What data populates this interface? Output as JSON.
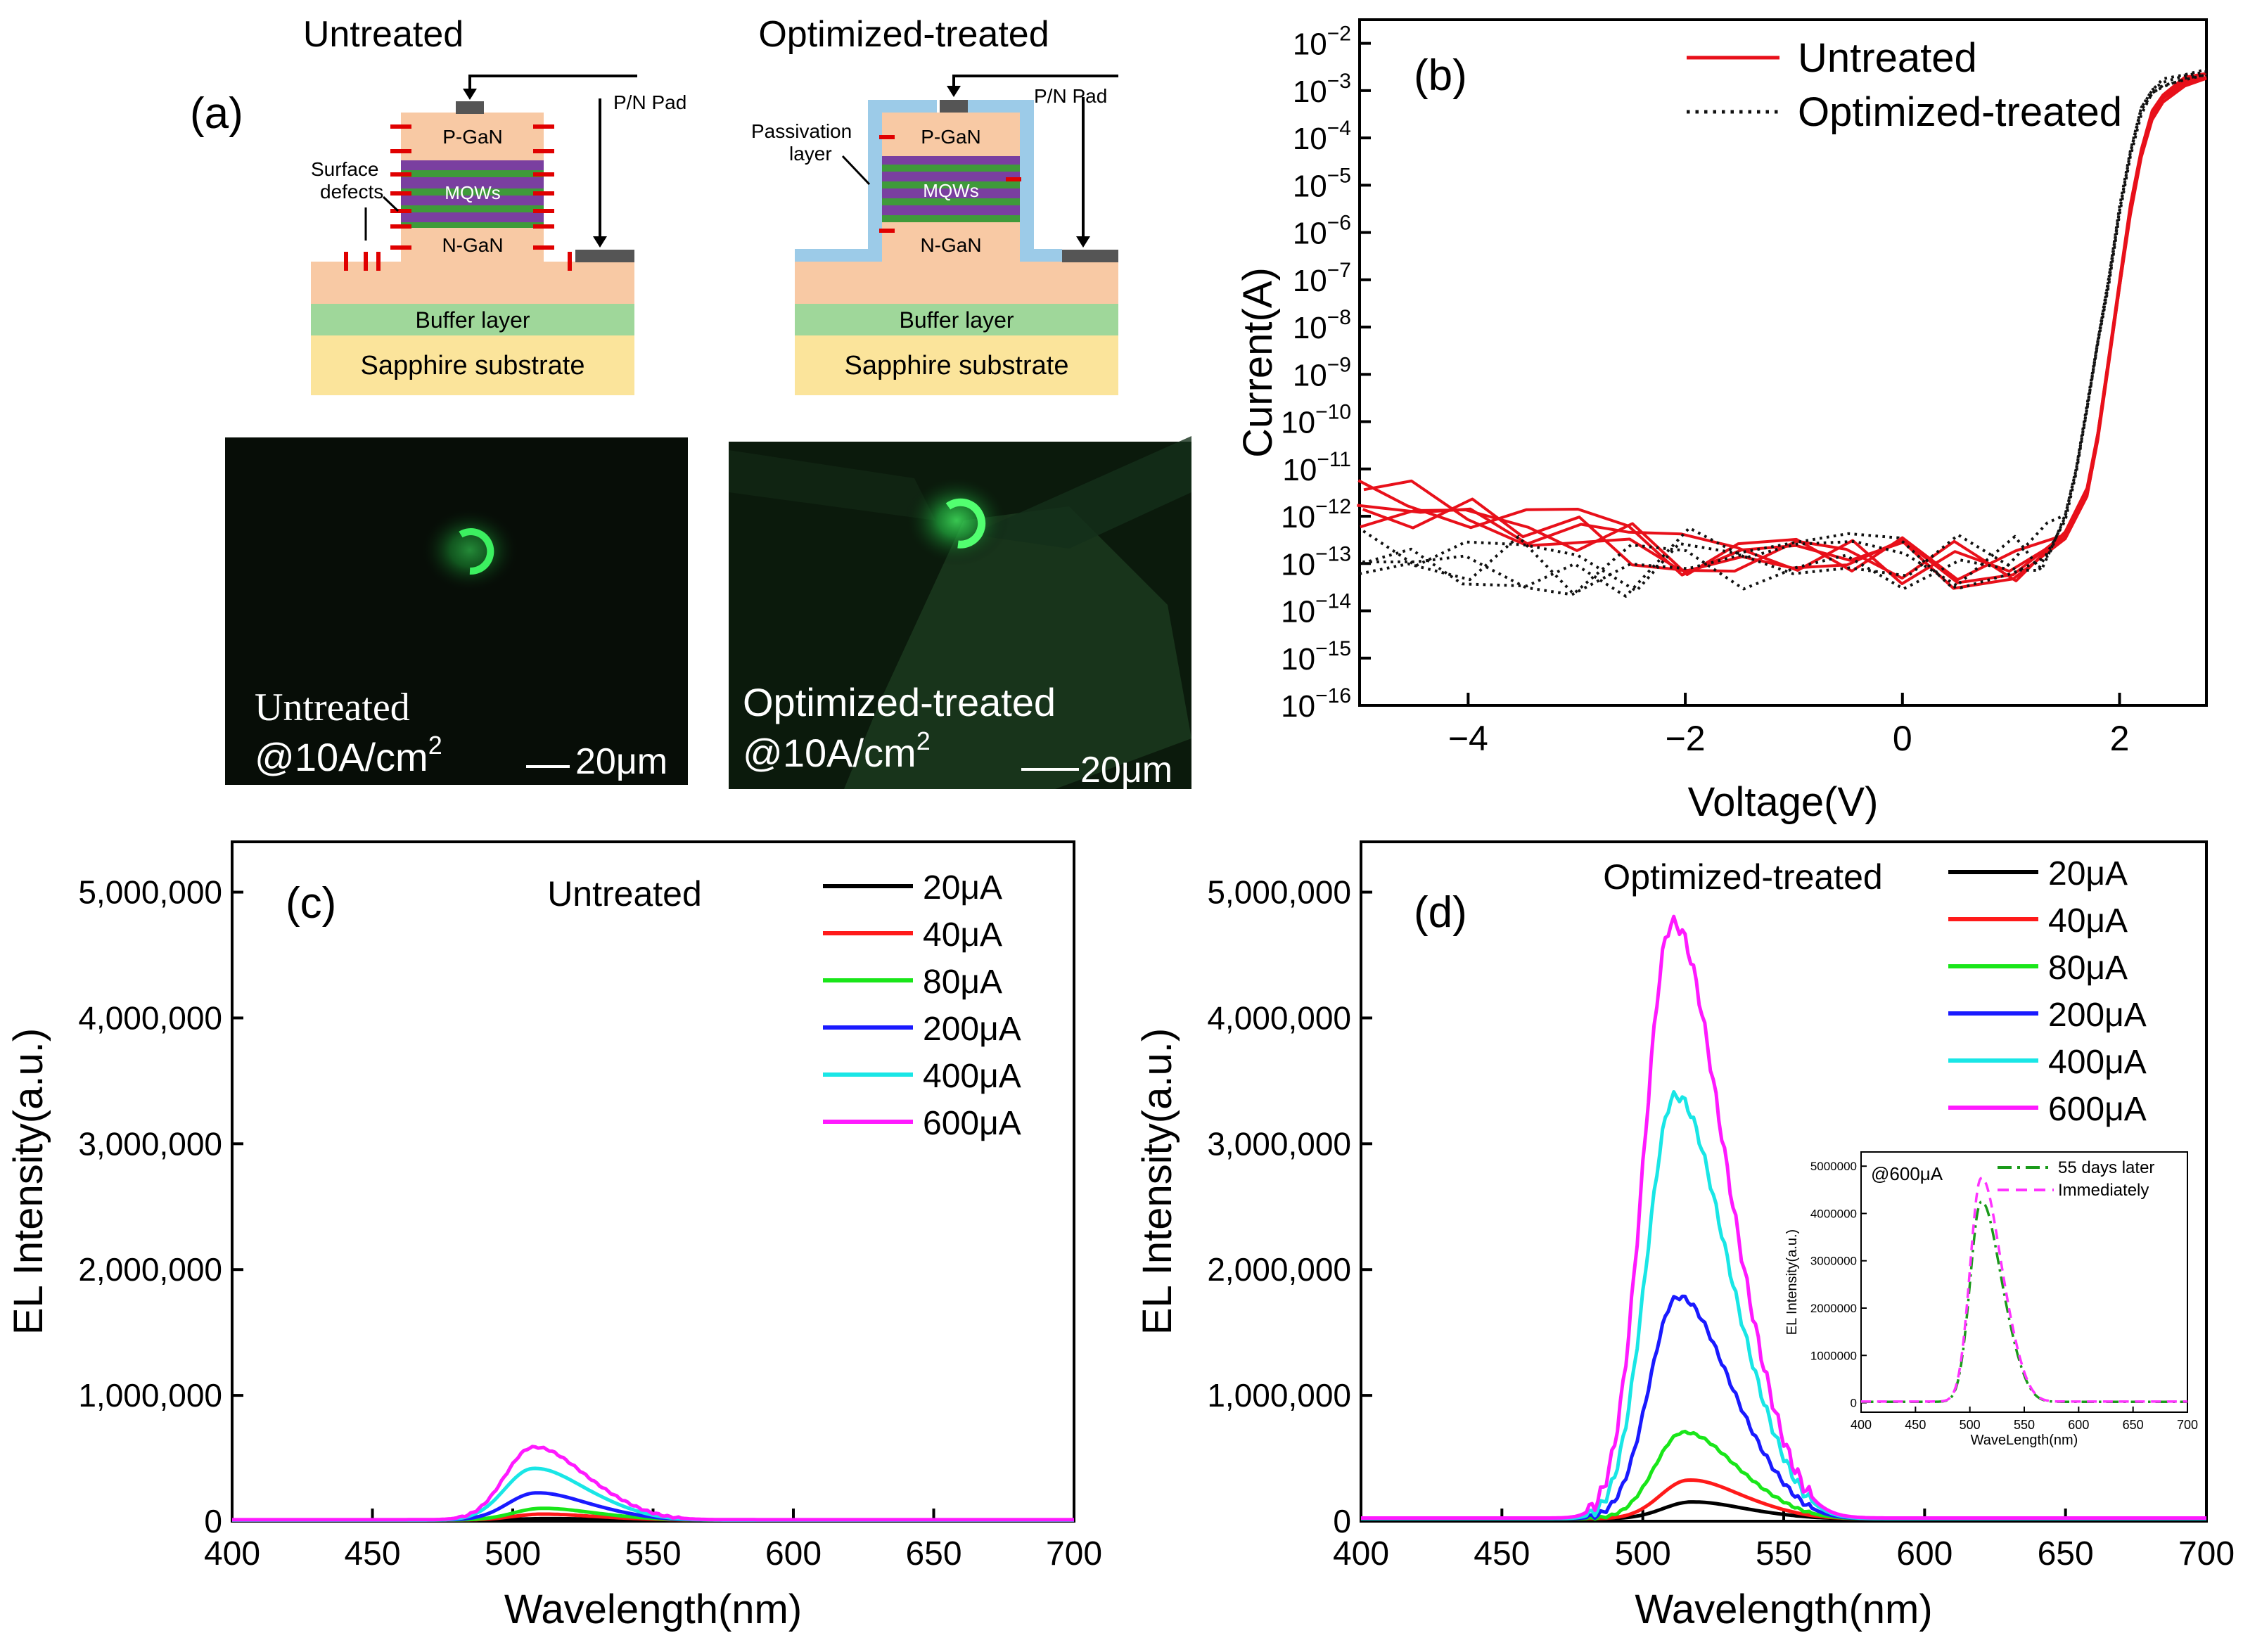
{
  "panel_a": {
    "label": "(a)",
    "untreated": {
      "title": "Untreated",
      "pn_pad": "P/N Pad",
      "surface_defects": "Surface\ndefects",
      "p_gan": "P-GaN",
      "mqws": "MQWs",
      "n_gan": "N-GaN",
      "buffer": "Buffer layer",
      "substrate": "Sapphire substrate",
      "photo_caption": "Untreated",
      "photo_cd": "@10A/cm",
      "photo_sup": "2",
      "scale": "20μm"
    },
    "treated": {
      "title": "Optimized-treated",
      "pn_pad": "P/N Pad",
      "passivation": "Passivation\nlayer",
      "p_gan": "P-GaN",
      "mqws": "MQWs",
      "n_gan": "N-GaN",
      "buffer": "Buffer layer",
      "substrate": "Sapphire substrate",
      "photo_caption": "Optimized-treated",
      "photo_cd": "@10A/cm",
      "photo_sup": "2",
      "scale": "20μm"
    },
    "colors": {
      "gan": "#f8c9a4",
      "buffer": "#9fd79a",
      "substrate": "#fbe49b",
      "mqw_purple": "#7a3fa0",
      "mqw_green": "#3f9a3a",
      "pad": "#555555",
      "passivation": "#9ccbe8",
      "defect": "#e00000",
      "glow": "#32e04a"
    }
  },
  "chart_data": [
    {
      "id": "b",
      "panel_label": "(b)",
      "type": "line",
      "xlabel": "Voltage(V)",
      "ylabel": "Current(A)",
      "xlim": [
        -5,
        2.8
      ],
      "ylim_log10": [
        -16,
        -1.5
      ],
      "yscale": "log",
      "xticks": [
        -4,
        -2,
        0,
        2
      ],
      "yticks_exp": [
        -16,
        -15,
        -14,
        -13,
        -12,
        -11,
        -10,
        -9,
        -8,
        -7,
        -6,
        -5,
        -4,
        -3,
        -2
      ],
      "ytick_base": "10",
      "legend_position": "top-right",
      "series": [
        {
          "name": "Untreated",
          "color": "#e8101a",
          "style": "solid",
          "x": [
            -5,
            -4.5,
            -4,
            -3.5,
            -3,
            -2.5,
            -2,
            -1.5,
            -1,
            -0.5,
            0,
            0.5,
            1,
            1.5,
            1.7,
            1.8,
            1.9,
            2.0,
            2.1,
            2.2,
            2.3,
            2.4,
            2.6,
            2.8
          ],
          "y": [
            2e-12,
            1.5e-12,
            9e-13,
            6e-13,
            4e-13,
            2.5e-13,
            2e-13,
            1.8e-13,
            1.5e-13,
            1.2e-13,
            1e-13,
            1e-13,
            1.2e-13,
            4e-13,
            3e-12,
            5e-11,
            2e-09,
            8e-08,
            3e-06,
            5e-05,
            0.0003,
            0.0007,
            0.0015,
            0.002
          ]
        },
        {
          "name": "Optimized-treated",
          "color": "#111111",
          "style": "dotted",
          "x": [
            -5,
            -4.5,
            -4,
            -3.5,
            -3,
            -2.5,
            -2,
            -1.5,
            -1,
            -0.5,
            0,
            0.5,
            1,
            1.3,
            1.5,
            1.6,
            1.7,
            1.8,
            1.9,
            2.0,
            2.1,
            2.2,
            2.3,
            2.4,
            2.6,
            2.8
          ],
          "y": [
            1e-13,
            1e-13,
            8e-14,
            1e-13,
            1e-13,
            1e-13,
            1.2e-13,
            1e-13,
            1e-13,
            1e-13,
            1e-13,
            1e-13,
            1e-13,
            1.5e-13,
            1e-12,
            1e-11,
            2e-10,
            5e-09,
            1e-07,
            3e-06,
            5e-05,
            0.0004,
            0.001,
            0.0015,
            0.002,
            0.0025
          ]
        }
      ]
    },
    {
      "id": "c",
      "panel_label": "(c)",
      "type": "line",
      "title": "Untreated",
      "xlabel": "Wavelength(nm)",
      "ylabel": "EL Intensity(a.u.)",
      "xlim": [
        400,
        700
      ],
      "ylim": [
        0,
        5400000
      ],
      "xticks": [
        400,
        450,
        500,
        550,
        600,
        650,
        700
      ],
      "yticks": [
        0,
        1000000,
        2000000,
        3000000,
        4000000,
        5000000
      ],
      "ytick_labels": [
        "0",
        "1,000,000",
        "2,000,000",
        "3,000,000",
        "4,000,000",
        "5,000,000"
      ],
      "legend_position": "top-right",
      "series": [
        {
          "name": "20μA",
          "color": "#000000",
          "peak_nm": 512,
          "peak": 20000,
          "baseline": 10000
        },
        {
          "name": "40μA",
          "color": "#ff1a1a",
          "peak_nm": 510,
          "peak": 55000,
          "baseline": 10000
        },
        {
          "name": "80μA",
          "color": "#19e619",
          "peak_nm": 510,
          "peak": 100000,
          "baseline": 10000
        },
        {
          "name": "200μA",
          "color": "#1a1aff",
          "peak_nm": 508,
          "peak": 220000,
          "baseline": 10000
        },
        {
          "name": "400μA",
          "color": "#19e6e6",
          "peak_nm": 507,
          "peak": 410000,
          "baseline": 10000
        },
        {
          "name": "600μA",
          "color": "#ff19ff",
          "peak_nm": 507,
          "peak": 575000,
          "baseline": 12000
        }
      ]
    },
    {
      "id": "d",
      "panel_label": "(d)",
      "type": "line",
      "title": "Optimized-treated",
      "xlabel": "Wavelength(nm)",
      "ylabel": "EL Intensity(a.u.)",
      "xlim": [
        400,
        700
      ],
      "ylim": [
        0,
        5400000
      ],
      "xticks": [
        400,
        450,
        500,
        550,
        600,
        650,
        700
      ],
      "yticks": [
        0,
        1000000,
        2000000,
        3000000,
        4000000,
        5000000
      ],
      "ytick_labels": [
        "0",
        "1,000,000",
        "2,000,000",
        "3,000,000",
        "4,000,000",
        "5,000,000"
      ],
      "legend_position": "top-right",
      "series": [
        {
          "name": "20μA",
          "color": "#000000",
          "peak_nm": 517,
          "peak": 150000,
          "baseline": 20000
        },
        {
          "name": "40μA",
          "color": "#ff1a1a",
          "peak_nm": 516,
          "peak": 320000,
          "baseline": 20000
        },
        {
          "name": "80μA",
          "color": "#19e619",
          "peak_nm": 514,
          "peak": 690000,
          "baseline": 20000
        },
        {
          "name": "200μA",
          "color": "#1a1aff",
          "peak_nm": 512,
          "peak": 1740000,
          "baseline": 20000
        },
        {
          "name": "400μA",
          "color": "#19e6e6",
          "peak_nm": 511,
          "peak": 3300000,
          "baseline": 20000
        },
        {
          "name": "600μA",
          "color": "#ff19ff",
          "peak_nm": 510,
          "peak": 4640000,
          "baseline": 25000
        }
      ],
      "inset": {
        "title": "@600μA",
        "xlabel": "WaveLength(nm)",
        "ylabel": "EL Intensity(a.u.)",
        "xlim": [
          400,
          700
        ],
        "ylim": [
          -200000,
          5300000
        ],
        "xticks": [
          400,
          450,
          500,
          550,
          600,
          650,
          700
        ],
        "yticks": [
          0,
          1000000,
          2000000,
          3000000,
          4000000,
          5000000
        ],
        "ytick_labels": [
          "0",
          "1000000",
          "2000000",
          "3000000",
          "4000000",
          "5000000"
        ],
        "series": [
          {
            "name": "55 days later",
            "color": "#1a9a1a",
            "style": "dashdot",
            "peak_nm": 510,
            "peak": 4150000,
            "baseline": 20000
          },
          {
            "name": "Immediately",
            "color": "#ff33ff",
            "style": "dashed",
            "peak_nm": 510,
            "peak": 4640000,
            "baseline": 25000
          }
        ]
      }
    }
  ]
}
